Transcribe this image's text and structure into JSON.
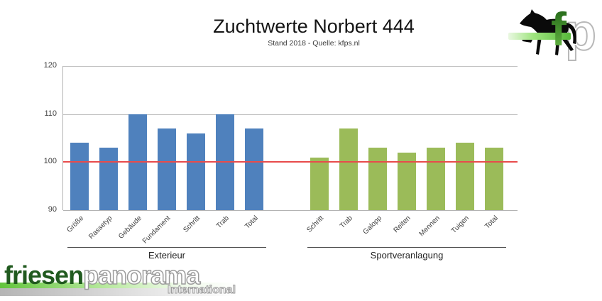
{
  "header": {
    "title": "Zuchtwerte Norbert 444",
    "subtitle": "Stand 2018 - Quelle: kfps.nl"
  },
  "corner_logo": {
    "letter_f": "f",
    "letter_p": "p",
    "horse_color": "#0a0a0a",
    "f_color_top": "#1a5c12",
    "f_color_bottom": "#6fc24a",
    "p_outline_color": "#b8b8b8",
    "band_color": "#7fd95e"
  },
  "chart_data": {
    "type": "bar",
    "title": "Zuchtwerte Norbert 444",
    "subtitle": "Stand 2018 - Quelle: kfps.nl",
    "ylim": [
      90,
      120
    ],
    "yticks": [
      90,
      100,
      110,
      120
    ],
    "grid": "horizontal",
    "legend": "none",
    "reference_line": {
      "value": 100,
      "color": "#e84c4c"
    },
    "axis_color": "#b3b3b3",
    "gridline_color": "#c0c0c0",
    "groups": [
      {
        "label": "Exterieur",
        "color": "#4f81bd",
        "categories": [
          "Größe",
          "Rassetyp",
          "Gebäude",
          "Fundament",
          "Schritt",
          "Trab",
          "Total"
        ],
        "values": [
          104,
          103,
          110,
          107,
          106,
          110,
          107
        ]
      },
      {
        "label": "Sportveranlagung",
        "color": "#9bbb59",
        "categories": [
          "Schritt",
          "Trab",
          "Galopp",
          "Reiten",
          "Mennen",
          "Tuigen",
          "Total"
        ],
        "values": [
          101,
          107,
          103,
          102,
          103,
          104,
          103
        ]
      }
    ]
  },
  "footer_logo": {
    "word_green": "friesen",
    "word_outline": "panorama",
    "subtext": "International",
    "green_color": "#215a1f"
  }
}
